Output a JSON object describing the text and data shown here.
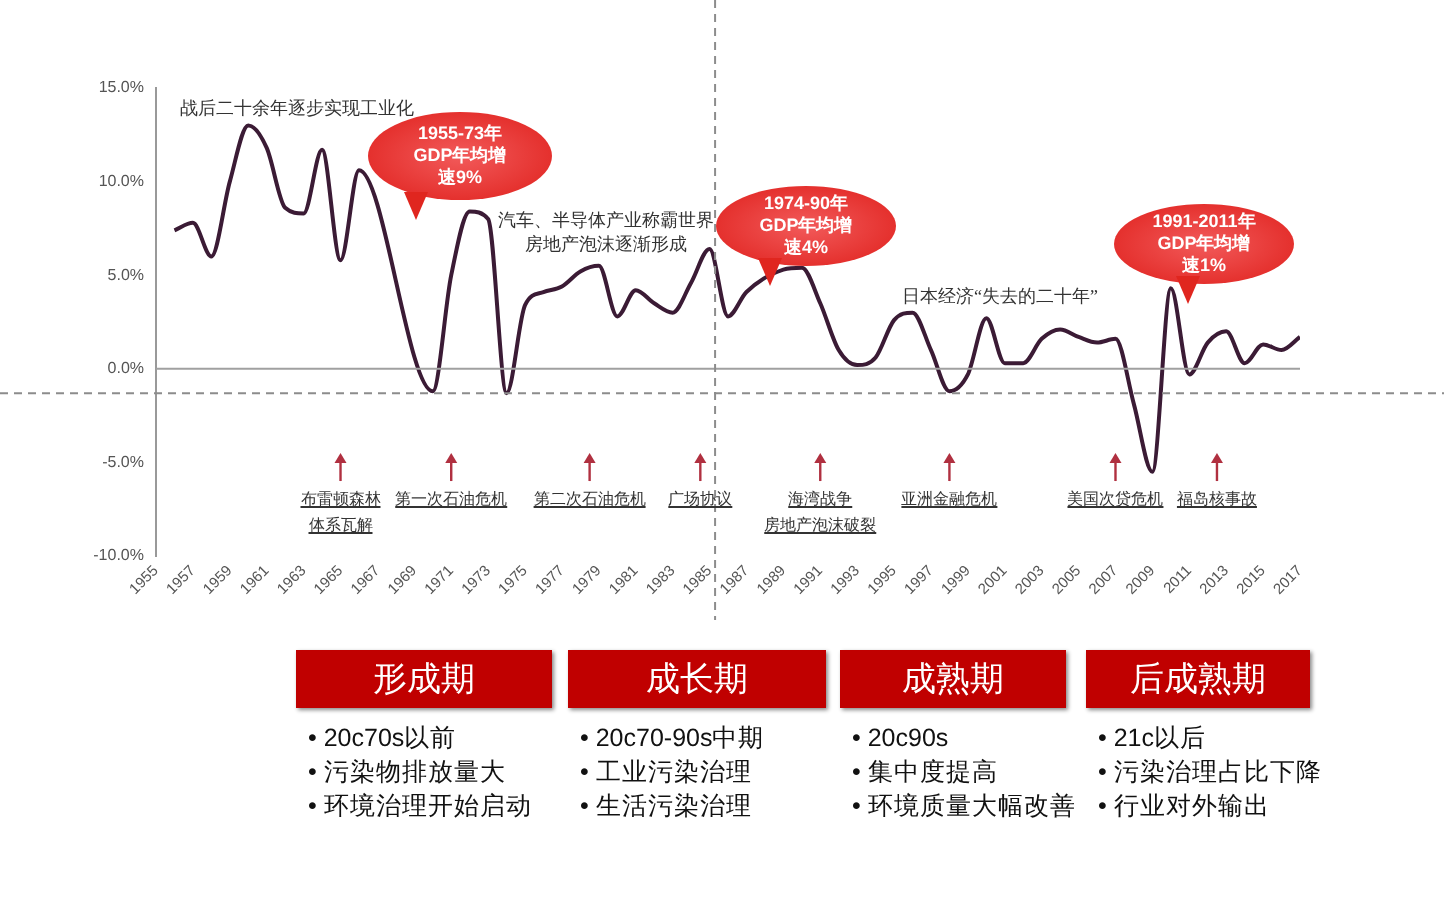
{
  "chart_data": {
    "type": "line",
    "color": "#3b1b35",
    "marker": "none",
    "legend": false,
    "grid": false,
    "x": [
      1956,
      1957,
      1958,
      1959,
      1960,
      1961,
      1962,
      1963,
      1964,
      1965,
      1966,
      1967,
      1968,
      1969,
      1970,
      1971,
      1972,
      1973,
      1974,
      1975,
      1976,
      1977,
      1978,
      1979,
      1980,
      1981,
      1982,
      1983,
      1984,
      1985,
      1986,
      1987,
      1988,
      1989,
      1990,
      1991,
      1992,
      1993,
      1994,
      1995,
      1996,
      1997,
      1998,
      1999,
      2000,
      2001,
      2002,
      2003,
      2004,
      2005,
      2006,
      2007,
      2008,
      2009,
      2010,
      2011,
      2012,
      2013,
      2014,
      2015,
      2016,
      2017
    ],
    "values": [
      7.4,
      7.8,
      6.0,
      10.0,
      13.0,
      11.8,
      8.6,
      8.3,
      11.7,
      5.8,
      10.6,
      null,
      null,
      null,
      -1.2,
      5.0,
      8.4,
      8.0,
      -1.3,
      3.4,
      4.1,
      4.4,
      5.2,
      5.5,
      2.8,
      4.2,
      3.5,
      3.0,
      4.6,
      6.4,
      2.8,
      4.1,
      null,
      5.3,
      5.4,
      3.5,
      1.0,
      0.2,
      0.6,
      2.6,
      3.0,
      1.0,
      -1.2,
      -0.3,
      2.7,
      0.3,
      0.3,
      1.6,
      2.1,
      1.7,
      1.4,
      1.6,
      -1.9,
      -5.5,
      4.3,
      -0.3,
      1.4,
      2.0,
      0.3,
      1.3,
      1.0,
      1.7
    ],
    "xlim": [
      1955,
      2017
    ],
    "xticks": [
      1955,
      1957,
      1959,
      1961,
      1963,
      1965,
      1967,
      1969,
      1971,
      1973,
      1975,
      1977,
      1979,
      1981,
      1983,
      1985,
      1987,
      1989,
      1991,
      1993,
      1995,
      1997,
      1999,
      2001,
      2003,
      2005,
      2007,
      2009,
      2011,
      2013,
      2015,
      2017
    ],
    "ylim": [
      -10,
      15
    ],
    "yticks": [
      {
        "value": -10,
        "label": "-10.0%"
      },
      {
        "value": -5,
        "label": "-5.0%"
      },
      {
        "value": 0,
        "label": "0.0%"
      },
      {
        "value": 5,
        "label": "5.0%"
      },
      {
        "value": 10,
        "label": "10.0%"
      },
      {
        "value": 15,
        "label": "15.0%"
      }
    ],
    "ref_lines": [
      {
        "axis": "y",
        "value": 0,
        "color": "#a0a0a0",
        "line_style": "solid"
      },
      {
        "axis": "y",
        "value": -1.3,
        "color": "#8c8c8c",
        "line_style": "dashed"
      },
      {
        "axis": "x",
        "value": 1985.3,
        "color": "#8c8c8c",
        "line_style": "dashed"
      }
    ],
    "annotations": [
      "战后二十余年逐步实现工业化",
      "1955-73年GDP年均增速9%",
      "汽车、半导体产业称霸世界房地产泡沫逐渐形成",
      "1974-90年GDP年均增速4%",
      "日本经济“失去的二十年”",
      "1991-2011年GDP年均增速1%",
      "布雷顿森林体系瓦解",
      "第一次石油危机",
      "第二次石油危机",
      "广场协议",
      "海湾战争房地产泡沫破裂",
      "亚洲金融危机",
      "美国次贷危机",
      "福岛核事故",
      "形成期",
      "• 20c70s以前",
      "• 污染物排放量大",
      "• 环境治理开始启动",
      "成长期",
      "• 20c70-90s中期",
      "• 工业污染治理",
      "• 生活污染治理",
      "成熟期",
      "• 20c90s",
      "• 集中度提高",
      "• 环境质量大幅改善",
      "后成熟期",
      "• 21c以后",
      "• 污染治理占比下降",
      "• 行业对外输出"
    ]
  }
}
